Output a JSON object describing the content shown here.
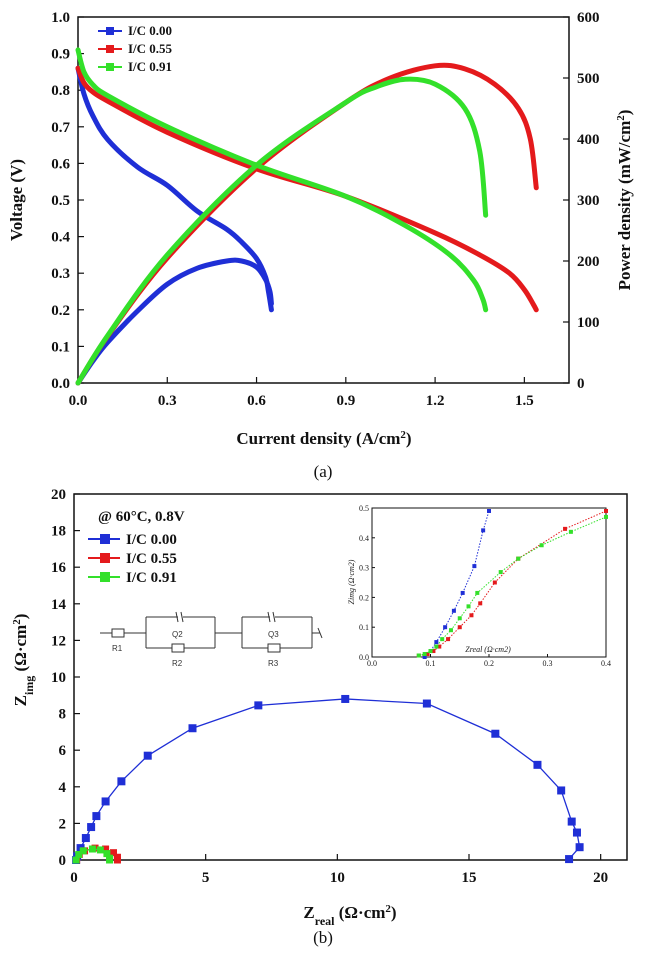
{
  "colors": {
    "s0": "#1f2fd6",
    "s55": "#e41a1c",
    "s91": "#33e02a",
    "axis": "#111111"
  },
  "chart_data": [
    {
      "type": "line",
      "panel_label": "(a)",
      "xlabel": "Current density (A/cm2)",
      "ylabel": "Voltage (V)",
      "y2label": "Power density (mW/cm2)",
      "xlim": [
        0,
        1.65
      ],
      "ylim": [
        0,
        1.0
      ],
      "y2lim": [
        0,
        600
      ],
      "xticks": [
        "0.0",
        "0.3",
        "0.6",
        "0.9",
        "1.2",
        "1.5"
      ],
      "yticks": [
        "0.0",
        "0.1",
        "0.2",
        "0.3",
        "0.4",
        "0.5",
        "0.6",
        "0.7",
        "0.8",
        "0.9",
        "1.0"
      ],
      "y2ticks": [
        "0",
        "100",
        "200",
        "300",
        "400",
        "500",
        "600"
      ],
      "legend": [
        "I/C 0.00",
        "I/C 0.55",
        "I/C 0.91"
      ],
      "series": [
        {
          "name": "I/C 0.00",
          "color_key": "s0",
          "polarization": [
            [
              0,
              0.86
            ],
            [
              0.02,
              0.79
            ],
            [
              0.05,
              0.73
            ],
            [
              0.1,
              0.665
            ],
            [
              0.2,
              0.59
            ],
            [
              0.3,
              0.54
            ],
            [
              0.4,
              0.47
            ],
            [
              0.5,
              0.42
            ],
            [
              0.55,
              0.385
            ],
            [
              0.6,
              0.34
            ],
            [
              0.63,
              0.29
            ],
            [
              0.64,
              0.25
            ],
            [
              0.65,
              0.2
            ]
          ],
          "power": [
            [
              0,
              0
            ],
            [
              0.05,
              36
            ],
            [
              0.1,
              67
            ],
            [
              0.2,
              118
            ],
            [
              0.3,
              162
            ],
            [
              0.4,
              188
            ],
            [
              0.5,
              200
            ],
            [
              0.55,
              200
            ],
            [
              0.6,
              190
            ],
            [
              0.63,
              170
            ],
            [
              0.645,
              150
            ],
            [
              0.65,
              130
            ]
          ]
        },
        {
          "name": "I/C 0.55",
          "color_key": "s55",
          "polarization": [
            [
              0,
              0.86
            ],
            [
              0.02,
              0.82
            ],
            [
              0.05,
              0.795
            ],
            [
              0.1,
              0.77
            ],
            [
              0.3,
              0.685
            ],
            [
              0.6,
              0.585
            ],
            [
              0.9,
              0.51
            ],
            [
              1.2,
              0.41
            ],
            [
              1.35,
              0.35
            ],
            [
              1.45,
              0.3
            ],
            [
              1.5,
              0.255
            ],
            [
              1.53,
              0.215
            ],
            [
              1.54,
              0.2
            ]
          ],
          "power": [
            [
              0,
              0
            ],
            [
              0.1,
              77
            ],
            [
              0.3,
              205
            ],
            [
              0.6,
              352
            ],
            [
              0.9,
              460
            ],
            [
              1.05,
              500
            ],
            [
              1.2,
              520
            ],
            [
              1.3,
              515
            ],
            [
              1.4,
              490
            ],
            [
              1.48,
              450
            ],
            [
              1.52,
              400
            ],
            [
              1.54,
              320
            ]
          ]
        },
        {
          "name": "I/C 0.91",
          "color_key": "s91",
          "polarization": [
            [
              0,
              0.91
            ],
            [
              0.02,
              0.85
            ],
            [
              0.05,
              0.815
            ],
            [
              0.1,
              0.785
            ],
            [
              0.3,
              0.7
            ],
            [
              0.6,
              0.595
            ],
            [
              0.9,
              0.51
            ],
            [
              1.1,
              0.43
            ],
            [
              1.25,
              0.35
            ],
            [
              1.33,
              0.28
            ],
            [
              1.36,
              0.23
            ],
            [
              1.37,
              0.2
            ]
          ],
          "power": [
            [
              0,
              0
            ],
            [
              0.1,
              78
            ],
            [
              0.3,
              210
            ],
            [
              0.6,
              357
            ],
            [
              0.9,
              460
            ],
            [
              1.0,
              485
            ],
            [
              1.1,
              498
            ],
            [
              1.2,
              490
            ],
            [
              1.3,
              450
            ],
            [
              1.35,
              380
            ],
            [
              1.37,
              275
            ]
          ]
        }
      ]
    },
    {
      "type": "scatter",
      "panel_label": "(b)",
      "annotation": "@ 60°C, 0.8V",
      "xlabel": "Zreal (Ω·cm2)",
      "ylabel": "Zimg (Ω·cm2)",
      "xlim": [
        0,
        21
      ],
      "ylim": [
        0,
        20
      ],
      "xticks": [
        "0",
        "5",
        "10",
        "15",
        "20"
      ],
      "yticks": [
        "0",
        "2",
        "4",
        "6",
        "8",
        "10",
        "12",
        "14",
        "16",
        "18",
        "20"
      ],
      "legend": [
        "I/C 0.00",
        "I/C 0.55",
        "I/C 0.91"
      ],
      "circuit_labels": [
        "R1",
        "Q2",
        "R2",
        "Q3",
        "R3"
      ],
      "series": [
        {
          "name": "I/C 0.00",
          "color_key": "s0",
          "points": [
            [
              0.08,
              0
            ],
            [
              0.12,
              0.2
            ],
            [
              0.25,
              0.65
            ],
            [
              0.45,
              1.2
            ],
            [
              0.65,
              1.8
            ],
            [
              0.85,
              2.4
            ],
            [
              1.2,
              3.2
            ],
            [
              1.8,
              4.3
            ],
            [
              2.8,
              5.7
            ],
            [
              4.5,
              7.2
            ],
            [
              7.0,
              8.45
            ],
            [
              10.3,
              8.8
            ],
            [
              13.4,
              8.55
            ],
            [
              16.0,
              6.9
            ],
            [
              17.6,
              5.2
            ],
            [
              18.5,
              3.8
            ],
            [
              18.9,
              2.1
            ],
            [
              19.1,
              1.5
            ],
            [
              19.2,
              0.7
            ],
            [
              18.8,
              0.05
            ]
          ]
        },
        {
          "name": "I/C 0.55",
          "color_key": "s55",
          "points": [
            [
              0.1,
              0
            ],
            [
              0.2,
              0.3
            ],
            [
              0.4,
              0.5
            ],
            [
              0.8,
              0.65
            ],
            [
              1.2,
              0.6
            ],
            [
              1.5,
              0.4
            ],
            [
              1.65,
              0.15
            ],
            [
              1.65,
              0
            ]
          ]
        },
        {
          "name": "I/C 0.91",
          "color_key": "s91",
          "points": [
            [
              0.08,
              0
            ],
            [
              0.18,
              0.3
            ],
            [
              0.35,
              0.5
            ],
            [
              0.7,
              0.6
            ],
            [
              1.0,
              0.55
            ],
            [
              1.25,
              0.35
            ],
            [
              1.35,
              0.1
            ],
            [
              1.35,
              0
            ]
          ]
        }
      ]
    },
    {
      "type": "scatter",
      "panel_label": "inset",
      "xlabel": "Zreal (Ω·cm2)",
      "ylabel": "Zimg (Ω·cm2)",
      "xlim": [
        0,
        0.4
      ],
      "ylim": [
        0,
        0.5
      ],
      "xticks": [
        "0.0",
        "0.1",
        "0.2",
        "0.3",
        "0.4"
      ],
      "yticks": [
        "0.0",
        "0.1",
        "0.2",
        "0.3",
        "0.4",
        "0.5"
      ],
      "series": [
        {
          "name": "I/C 0.00",
          "color_key": "s0",
          "points": [
            [
              0.09,
              0.0
            ],
            [
              0.1,
              0.02
            ],
            [
              0.11,
              0.05
            ],
            [
              0.125,
              0.1
            ],
            [
              0.14,
              0.155
            ],
            [
              0.155,
              0.215
            ],
            [
              0.175,
              0.305
            ],
            [
              0.19,
              0.425
            ],
            [
              0.2,
              0.49
            ]
          ]
        },
        {
          "name": "I/C 0.55",
          "color_key": "s55",
          "points": [
            [
              0.08,
              0.005
            ],
            [
              0.095,
              0.01
            ],
            [
              0.105,
              0.02
            ],
            [
              0.115,
              0.035
            ],
            [
              0.13,
              0.06
            ],
            [
              0.15,
              0.1
            ],
            [
              0.17,
              0.14
            ],
            [
              0.185,
              0.18
            ],
            [
              0.21,
              0.25
            ],
            [
              0.25,
              0.33
            ],
            [
              0.33,
              0.43
            ],
            [
              0.4,
              0.49
            ]
          ]
        },
        {
          "name": "I/C 0.91",
          "color_key": "s91",
          "points": [
            [
              0.08,
              0.005
            ],
            [
              0.09,
              0.01
            ],
            [
              0.1,
              0.02
            ],
            [
              0.11,
              0.035
            ],
            [
              0.12,
              0.06
            ],
            [
              0.135,
              0.09
            ],
            [
              0.15,
              0.13
            ],
            [
              0.165,
              0.17
            ],
            [
              0.18,
              0.215
            ],
            [
              0.22,
              0.285
            ],
            [
              0.25,
              0.33
            ],
            [
              0.29,
              0.375
            ],
            [
              0.34,
              0.42
            ],
            [
              0.4,
              0.47
            ]
          ]
        }
      ]
    }
  ]
}
